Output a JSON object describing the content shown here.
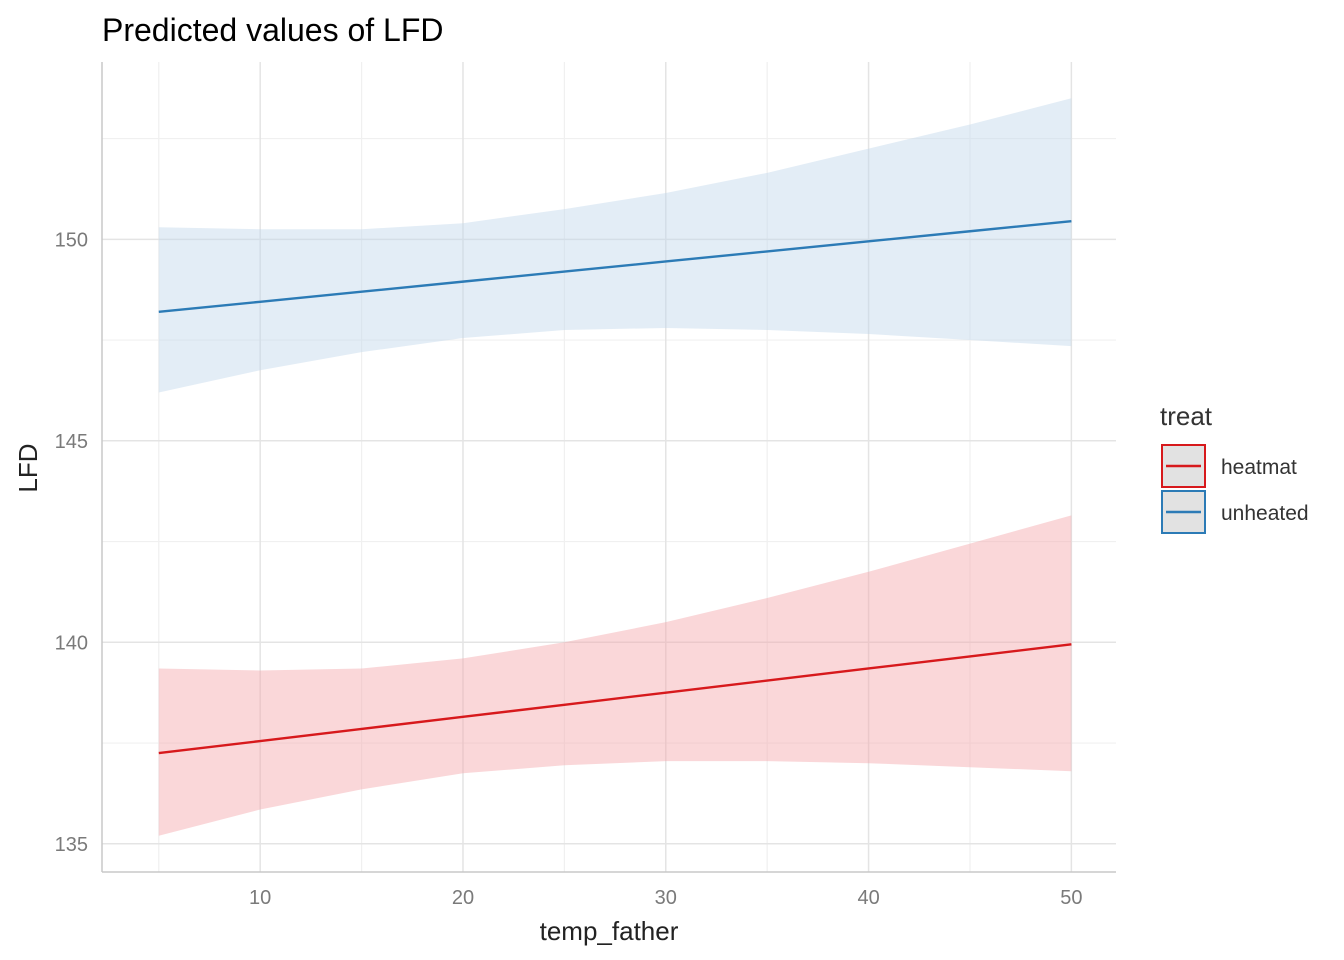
{
  "chart_data": {
    "type": "line",
    "title": "Predicted values of LFD",
    "xlabel": "temp_father",
    "ylabel": "LFD",
    "xlim": [
      2.2,
      52.2
    ],
    "ylim": [
      134.3,
      154.4
    ],
    "x_ticks": [
      10,
      20,
      30,
      40,
      50
    ],
    "y_ticks": [
      135,
      140,
      145,
      150
    ],
    "grid": true,
    "legend": {
      "title": "treat",
      "placement": "right"
    },
    "series": [
      {
        "name": "heatmat",
        "color": "#d7191c",
        "fill": "#f4a7aa",
        "x": [
          5,
          10,
          15,
          20,
          25,
          30,
          35,
          40,
          45,
          50
        ],
        "y": [
          137.25,
          137.55,
          137.85,
          138.15,
          138.45,
          138.75,
          139.05,
          139.35,
          139.65,
          139.95
        ],
        "lower": [
          135.2,
          135.85,
          136.35,
          136.75,
          136.95,
          137.05,
          137.05,
          137.0,
          136.9,
          136.8
        ],
        "upper": [
          139.35,
          139.3,
          139.35,
          139.6,
          140.0,
          140.5,
          141.1,
          141.75,
          142.45,
          143.15
        ]
      },
      {
        "name": "unheated",
        "color": "#2c7bb6",
        "fill": "#c0d6ea",
        "x": [
          5,
          10,
          15,
          20,
          25,
          30,
          35,
          40,
          45,
          50
        ],
        "y": [
          148.2,
          148.45,
          148.7,
          148.95,
          149.2,
          149.45,
          149.7,
          149.95,
          150.2,
          150.45
        ],
        "lower": [
          146.2,
          146.75,
          147.2,
          147.55,
          147.75,
          147.8,
          147.75,
          147.65,
          147.5,
          147.35
        ],
        "upper": [
          150.3,
          150.25,
          150.25,
          150.4,
          150.75,
          151.15,
          151.65,
          152.25,
          152.85,
          153.5
        ]
      }
    ]
  }
}
